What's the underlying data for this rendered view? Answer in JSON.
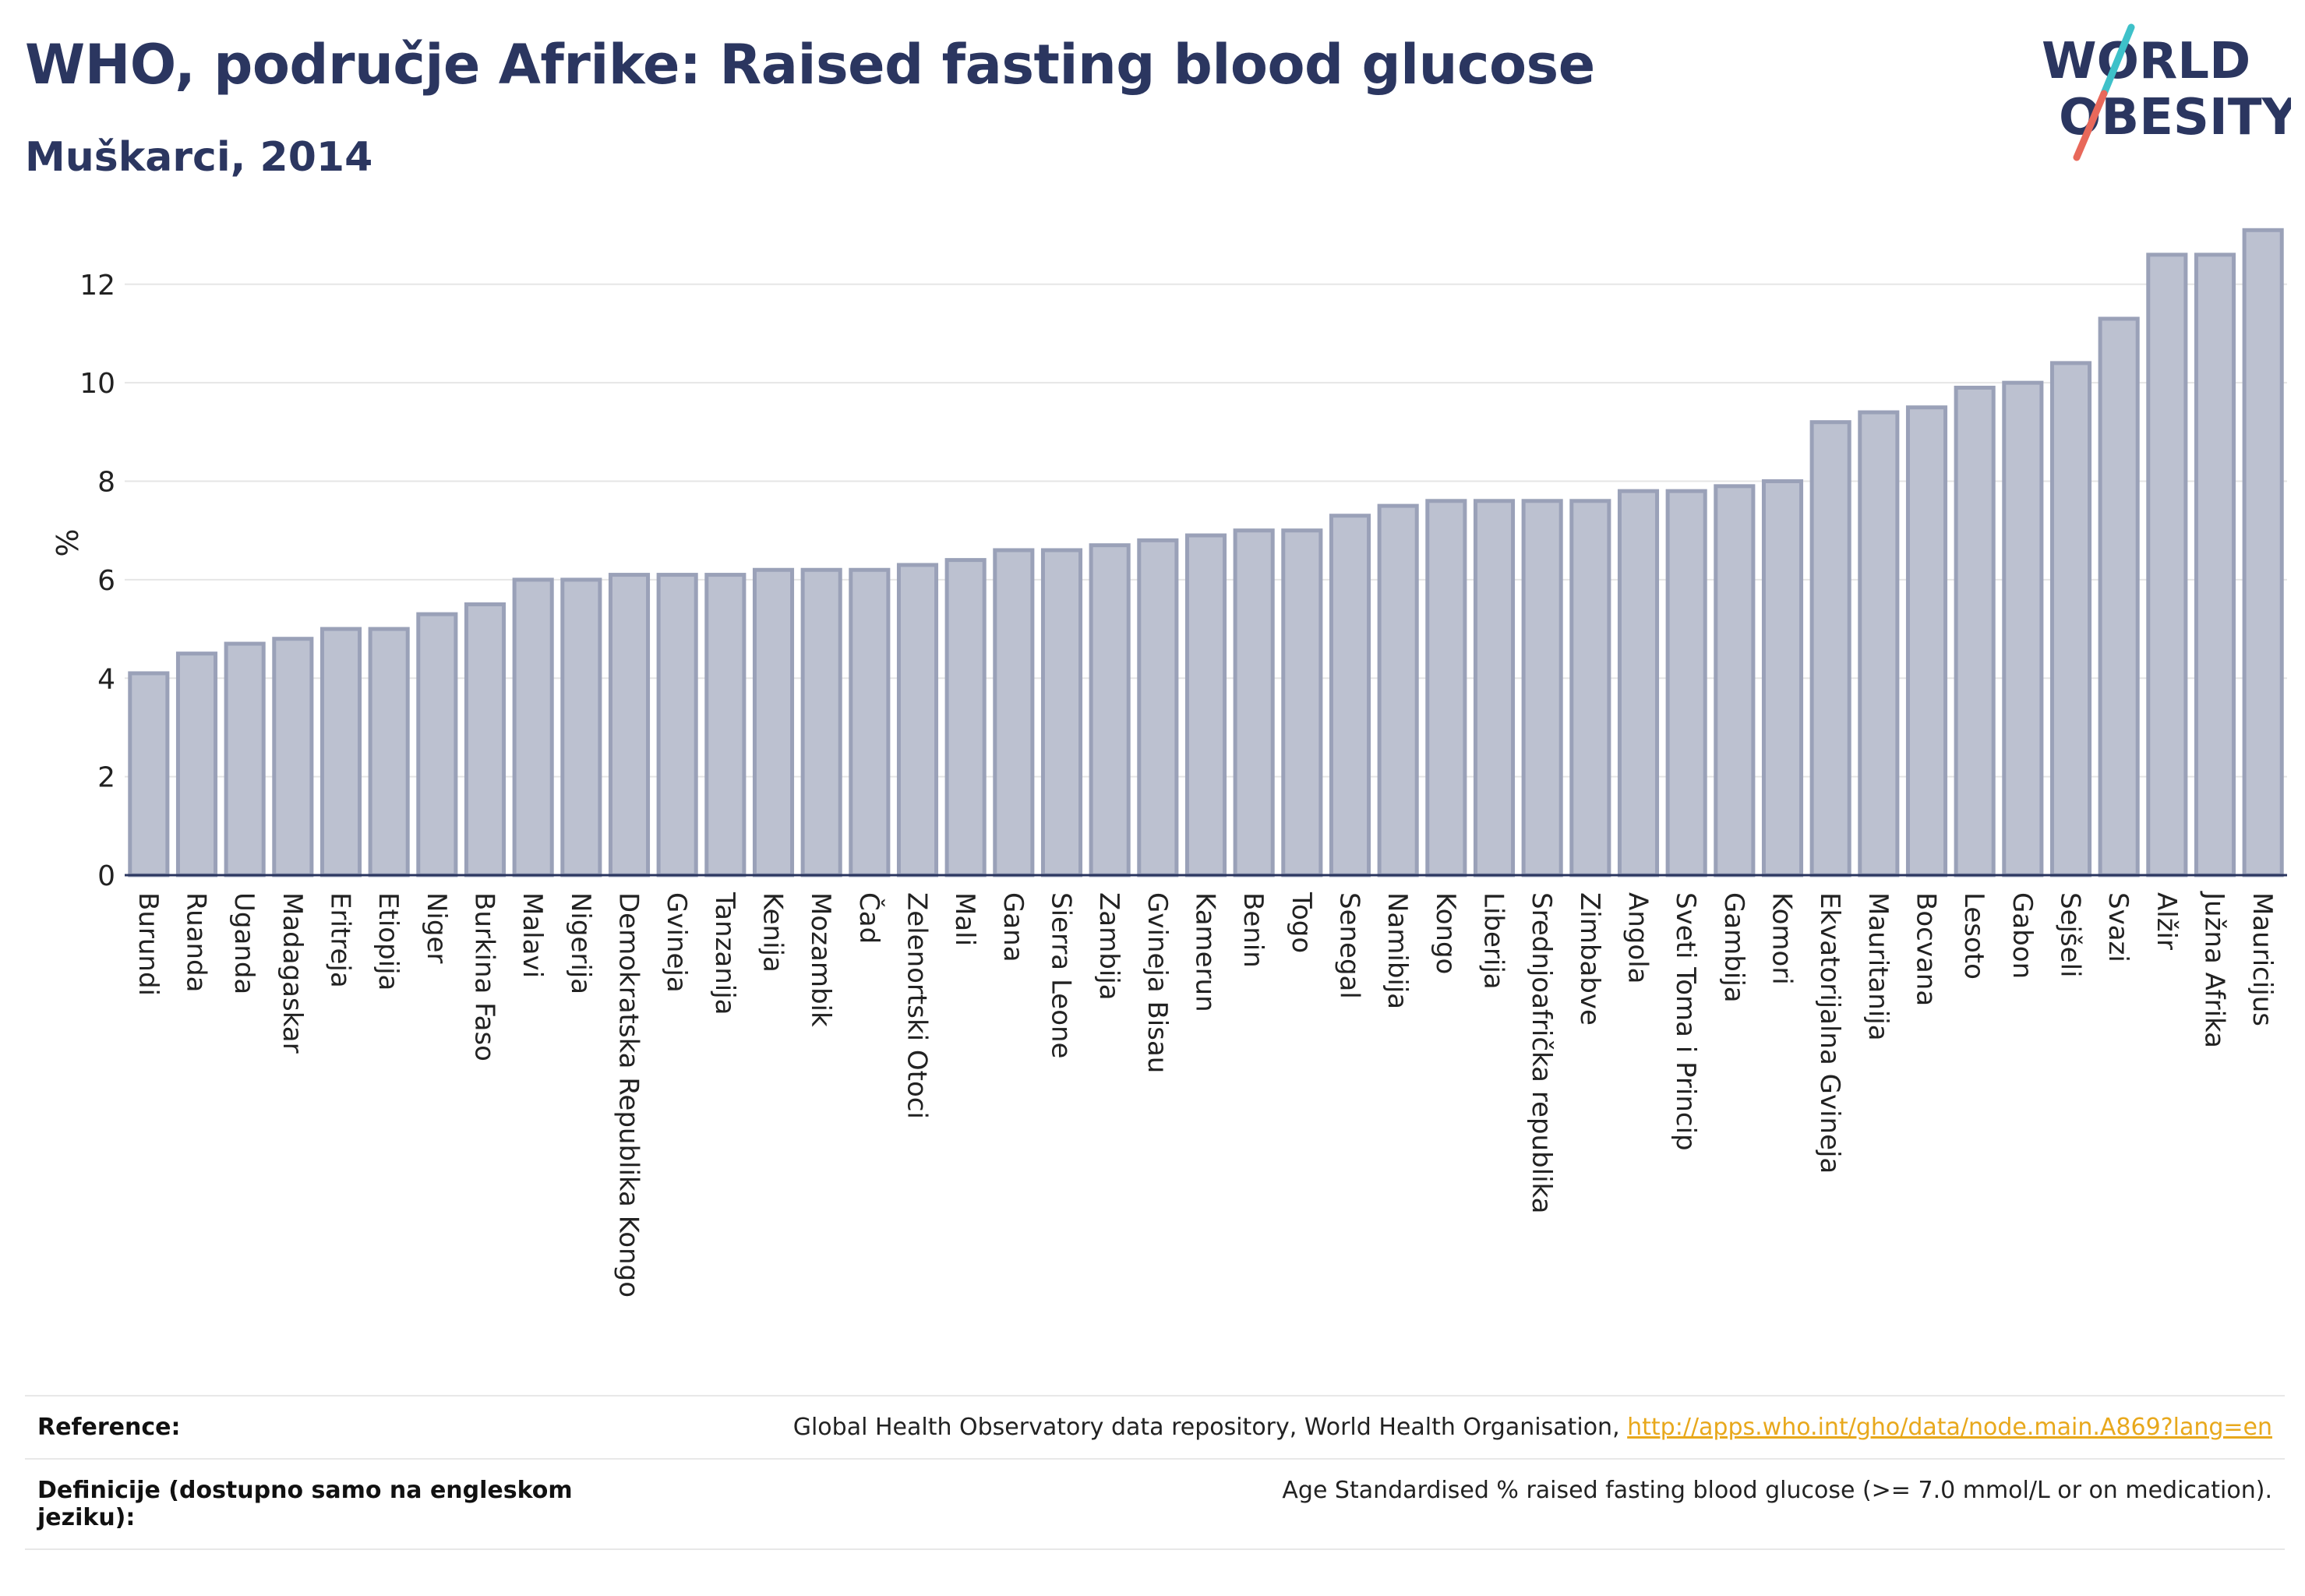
{
  "header": {
    "title": "WHO, područje Afrike: Raised fasting blood glucose",
    "subtitle": "Muškarci, 2014"
  },
  "logo": {
    "line1": "WORLD",
    "line2": "OBESITY",
    "colors": {
      "text": "#2b3660",
      "slash_teal": "#3ec1c9",
      "slash_red": "#e8685a"
    }
  },
  "chart_data": {
    "type": "bar",
    "ylabel": "%",
    "xlabel": "",
    "ylim": [
      0,
      13.5
    ],
    "yticks": [
      0,
      2,
      4,
      6,
      8,
      10,
      12
    ],
    "grid": true,
    "legend": "none",
    "bar_fill": "#bcc1d0",
    "bar_stroke": "#9aa1b8",
    "categories": [
      "Burundi",
      "Ruanda",
      "Uganda",
      "Madagaskar",
      "Eritreja",
      "Etiopija",
      "Niger",
      "Burkina Faso",
      "Malavi",
      "Nigerija",
      "Demokratska Republika Kongo",
      "Gvineja",
      "Tanzanija",
      "Kenija",
      "Mozambik",
      "Čad",
      "Zelenortski Otoci",
      "Mali",
      "Gana",
      "Sierra Leone",
      "Zambija",
      "Gvineja Bisau",
      "Kamerun",
      "Benin",
      "Togo",
      "Senegal",
      "Namibija",
      "Kongo",
      "Liberija",
      "Srednjoafrička republika",
      "Zimbabve",
      "Angola",
      "Sveti Toma i Princip",
      "Gambija",
      "Komori",
      "Ekvatorijalna Gvineja",
      "Mauritanija",
      "Bocvana",
      "Lesoto",
      "Gabon",
      "Sejšeli",
      "Svazi",
      "Alžir",
      "Južna Afrika",
      "Mauricijus"
    ],
    "values": [
      4.1,
      4.5,
      4.7,
      4.8,
      5.0,
      5.0,
      5.3,
      5.5,
      6.0,
      6.0,
      6.1,
      6.1,
      6.1,
      6.2,
      6.2,
      6.2,
      6.3,
      6.4,
      6.6,
      6.6,
      6.7,
      6.8,
      6.9,
      7.0,
      7.0,
      7.3,
      7.5,
      7.6,
      7.6,
      7.6,
      7.6,
      7.8,
      7.8,
      7.9,
      8.0,
      9.2,
      9.4,
      9.5,
      9.9,
      10.0,
      10.4,
      11.3,
      12.6,
      12.6,
      13.1
    ]
  },
  "footer": {
    "reference_label": "Reference:",
    "reference_text": "Global Health Observatory data repository, World Health Organisation, ",
    "reference_link": "http://apps.who.int/gho/data/node.main.A869?lang=en",
    "definition_label": "Definicije (dostupno samo na engleskom jeziku):",
    "definition_text": "Age Standardised % raised fasting blood glucose (>= 7.0 mmol/L or on medication)."
  }
}
